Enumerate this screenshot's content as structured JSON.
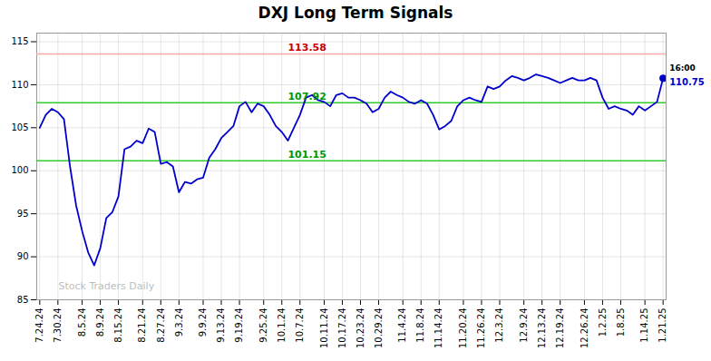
{
  "chart_data": {
    "type": "line",
    "title": "DXJ Long Term Signals",
    "categories": [
      "7.24.24",
      null,
      null,
      "7.30.24",
      null,
      null,
      null,
      "8.5.24",
      null,
      null,
      "8.9.24",
      null,
      null,
      "8.15.24",
      null,
      null,
      null,
      "8.21.24",
      null,
      null,
      "8.27.24",
      null,
      null,
      "9.3.24",
      null,
      null,
      null,
      "9.9.24",
      null,
      null,
      "9.13.24",
      null,
      null,
      "9.19.24",
      null,
      null,
      null,
      "9.25.24",
      null,
      null,
      "10.1.24",
      null,
      null,
      "10.7.24",
      null,
      null,
      null,
      "10.11.24",
      null,
      null,
      "10.17.24",
      null,
      null,
      "10.23.24",
      null,
      null,
      "10.29.24",
      null,
      null,
      null,
      "11.4.24",
      null,
      null,
      "11.8.24",
      null,
      null,
      "11.14.24",
      null,
      null,
      null,
      "11.20.24",
      null,
      null,
      "11.26.24",
      null,
      null,
      "12.3.24",
      null,
      null,
      null,
      "12.9.24",
      null,
      null,
      "12.13.24",
      null,
      null,
      "12.19.24",
      null,
      null,
      null,
      "12.26.24",
      null,
      null,
      "1.2.25",
      null,
      null,
      "1.8.25",
      null,
      null,
      null,
      "1.14.25",
      null,
      null,
      "1.21.25"
    ],
    "values": [
      105.0,
      106.5,
      107.2,
      106.8,
      106.0,
      100.5,
      96.0,
      93.0,
      90.5,
      89.0,
      91.0,
      94.5,
      95.2,
      97.0,
      102.5,
      102.8,
      103.5,
      103.2,
      104.9,
      104.5,
      100.8,
      101.0,
      100.5,
      97.5,
      98.7,
      98.5,
      99.0,
      99.2,
      101.5,
      102.5,
      103.8,
      104.5,
      105.2,
      107.5,
      108.0,
      106.8,
      107.8,
      107.5,
      106.5,
      105.2,
      104.5,
      103.5,
      105.0,
      106.5,
      108.5,
      108.8,
      108.2,
      108.0,
      107.5,
      108.8,
      109.0,
      108.5,
      108.5,
      108.2,
      107.8,
      106.8,
      107.2,
      108.5,
      109.2,
      108.8,
      108.5,
      108.0,
      107.8,
      108.2,
      107.8,
      106.5,
      104.8,
      105.2,
      105.8,
      107.5,
      108.2,
      108.5,
      108.2,
      108.0,
      109.8,
      109.5,
      109.8,
      110.5,
      111.0,
      110.8,
      110.5,
      110.8,
      111.2,
      111.0,
      110.8,
      110.5,
      110.2,
      110.5,
      110.8,
      110.5,
      110.5,
      110.8,
      110.5,
      108.5,
      107.2,
      107.5,
      107.2,
      107.0,
      106.5,
      107.5,
      107.0,
      107.5,
      108.0,
      110.75
    ],
    "color": "#0000cc",
    "ylim": [
      85,
      116
    ],
    "yticks": [
      85,
      90,
      95,
      100,
      105,
      110,
      115
    ],
    "grid": true,
    "reference_lines": [
      {
        "value": 113.58,
        "color": "#ffaaaa",
        "label": "113.58",
        "label_color": "#cc0000"
      },
      {
        "value": 107.92,
        "color": "#33cc33",
        "label": "107.92",
        "label_color": "#009900"
      },
      {
        "value": 101.15,
        "color": "#33cc33",
        "label": "101.15",
        "label_color": "#009900"
      }
    ],
    "endpoint": {
      "value": 110.75,
      "label": "110.75",
      "time": "16:00"
    },
    "watermark": {
      "text": "Stock Traders Daily",
      "color": "#b0b0b0"
    }
  }
}
